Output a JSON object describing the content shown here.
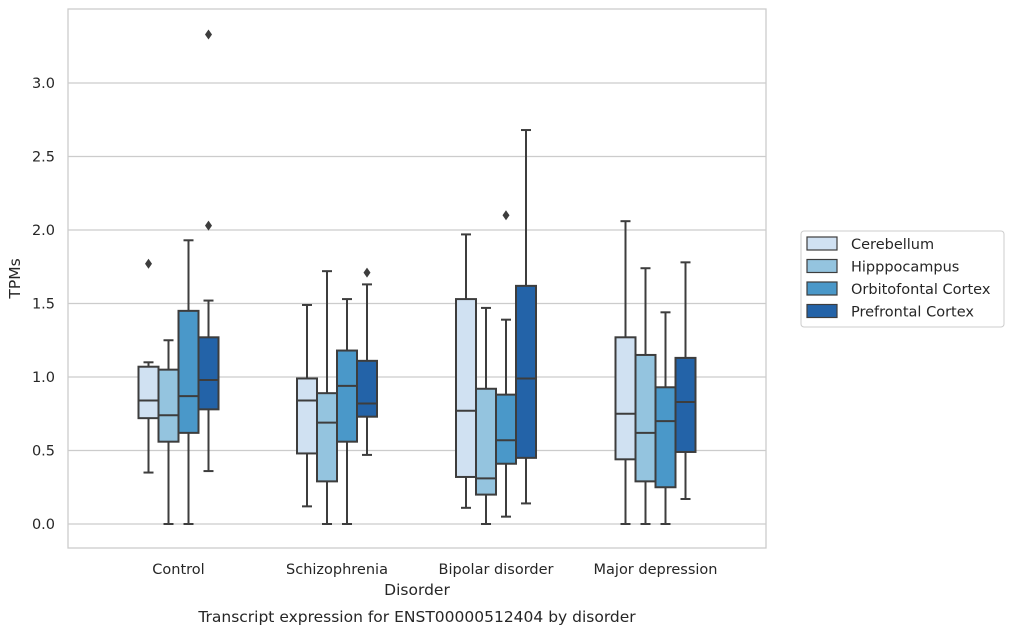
{
  "chart_data": {
    "type": "boxplot",
    "xlabel": "Disorder",
    "ylabel": "TPMs",
    "caption": "Transcript expression for ENST00000512404 by disorder",
    "ylim": [
      -0.16,
      3.48
    ],
    "yticks": [
      "0.0",
      "0.5",
      "1.0",
      "1.5",
      "2.0",
      "2.5",
      "3.0"
    ],
    "grid": "horizontal",
    "legend_position": "right, outside plot",
    "categories": [
      "Control",
      "Schizophrenia",
      "Bipolar disorder",
      "Major depression"
    ],
    "series": [
      {
        "name": "Cerebellum",
        "color": "#d0e1f2",
        "boxes": [
          {
            "whisker_low": 0.35,
            "q1": 0.72,
            "median": 0.84,
            "q3": 1.07,
            "whisker_high": 1.1,
            "outliers": [
              1.77
            ]
          },
          {
            "whisker_low": 0.12,
            "q1": 0.48,
            "median": 0.84,
            "q3": 0.99,
            "whisker_high": 1.49,
            "outliers": []
          },
          {
            "whisker_low": 0.11,
            "q1": 0.32,
            "median": 0.77,
            "q3": 1.53,
            "whisker_high": 1.97,
            "outliers": []
          },
          {
            "whisker_low": 0.0,
            "q1": 0.44,
            "median": 0.75,
            "q3": 1.27,
            "whisker_high": 2.06,
            "outliers": []
          }
        ]
      },
      {
        "name": "Hipppocampus",
        "color": "#94c4df",
        "boxes": [
          {
            "whisker_low": 0.0,
            "q1": 0.56,
            "median": 0.74,
            "q3": 1.05,
            "whisker_high": 1.25,
            "outliers": []
          },
          {
            "whisker_low": 0.0,
            "q1": 0.29,
            "median": 0.69,
            "q3": 0.89,
            "whisker_high": 1.72,
            "outliers": []
          },
          {
            "whisker_low": 0.0,
            "q1": 0.2,
            "median": 0.31,
            "q3": 0.92,
            "whisker_high": 1.47,
            "outliers": []
          },
          {
            "whisker_low": 0.0,
            "q1": 0.29,
            "median": 0.62,
            "q3": 1.15,
            "whisker_high": 1.74,
            "outliers": []
          }
        ]
      },
      {
        "name": "Orbitofontal Cortex",
        "color": "#4a98c9",
        "boxes": [
          {
            "whisker_low": 0.0,
            "q1": 0.62,
            "median": 0.87,
            "q3": 1.45,
            "whisker_high": 1.93,
            "outliers": []
          },
          {
            "whisker_low": 0.0,
            "q1": 0.56,
            "median": 0.94,
            "q3": 1.18,
            "whisker_high": 1.53,
            "outliers": []
          },
          {
            "whisker_low": 0.05,
            "q1": 0.41,
            "median": 0.57,
            "q3": 0.88,
            "whisker_high": 1.39,
            "outliers": [
              2.1
            ]
          },
          {
            "whisker_low": 0.0,
            "q1": 0.25,
            "median": 0.7,
            "q3": 0.93,
            "whisker_high": 1.44,
            "outliers": []
          }
        ]
      },
      {
        "name": "Prefrontal Cortex",
        "color": "#2363a8",
        "boxes": [
          {
            "whisker_low": 0.36,
            "q1": 0.78,
            "median": 0.98,
            "q3": 1.27,
            "whisker_high": 1.52,
            "outliers": [
              2.03,
              3.33
            ]
          },
          {
            "whisker_low": 0.47,
            "q1": 0.73,
            "median": 0.82,
            "q3": 1.11,
            "whisker_high": 1.63,
            "outliers": [
              1.71
            ]
          },
          {
            "whisker_low": 0.14,
            "q1": 0.45,
            "median": 0.99,
            "q3": 1.62,
            "whisker_high": 2.68,
            "outliers": []
          },
          {
            "whisker_low": 0.17,
            "q1": 0.49,
            "median": 0.83,
            "q3": 1.13,
            "whisker_high": 1.78,
            "outliers": []
          }
        ]
      }
    ]
  }
}
